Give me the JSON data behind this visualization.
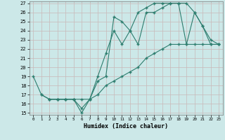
{
  "xlabel": "Humidex (Indice chaleur)",
  "background_color": "#cce8e8",
  "line_color": "#2d7d6e",
  "ylim": [
    15,
    27
  ],
  "xlim": [
    -0.5,
    23.5
  ],
  "yticks": [
    15,
    16,
    17,
    18,
    19,
    20,
    21,
    22,
    23,
    24,
    25,
    26,
    27
  ],
  "xticks": [
    0,
    1,
    2,
    3,
    4,
    5,
    6,
    7,
    8,
    9,
    10,
    11,
    12,
    13,
    14,
    15,
    16,
    17,
    18,
    19,
    20,
    21,
    22,
    23
  ],
  "line1_x": [
    0,
    1,
    2,
    3,
    4,
    5,
    6,
    7,
    8,
    9,
    10,
    11,
    12,
    13,
    14,
    15,
    16,
    17,
    18,
    19,
    20,
    21,
    22,
    23
  ],
  "line1_y": [
    19,
    17,
    16.5,
    16.5,
    16.5,
    16.5,
    15,
    16.5,
    19,
    21.5,
    24,
    22.5,
    24,
    22.5,
    26,
    26,
    26.5,
    27,
    27,
    27,
    26,
    24.5,
    23,
    22.5
  ],
  "line2_x": [
    1,
    2,
    3,
    4,
    5,
    6,
    7,
    8,
    9,
    10,
    11,
    12,
    13,
    14,
    15,
    16,
    17,
    18,
    19,
    20,
    21,
    22,
    23
  ],
  "line2_y": [
    17,
    16.5,
    16.5,
    16.5,
    16.5,
    15.5,
    16.5,
    18.5,
    19,
    25.5,
    25,
    24,
    26,
    26.5,
    27,
    27,
    27,
    27,
    22.5,
    26,
    24.5,
    22.5,
    22.5
  ],
  "line3_x": [
    2,
    3,
    4,
    5,
    6,
    7,
    8,
    9,
    10,
    11,
    12,
    13,
    14,
    15,
    16,
    17,
    18,
    19,
    20,
    21,
    22,
    23
  ],
  "line3_y": [
    16.5,
    16.5,
    16.5,
    16.5,
    16.5,
    16.5,
    17,
    18,
    18.5,
    19,
    19.5,
    20,
    21,
    21.5,
    22,
    22.5,
    22.5,
    22.5,
    22.5,
    22.5,
    22.5,
    22.5
  ]
}
